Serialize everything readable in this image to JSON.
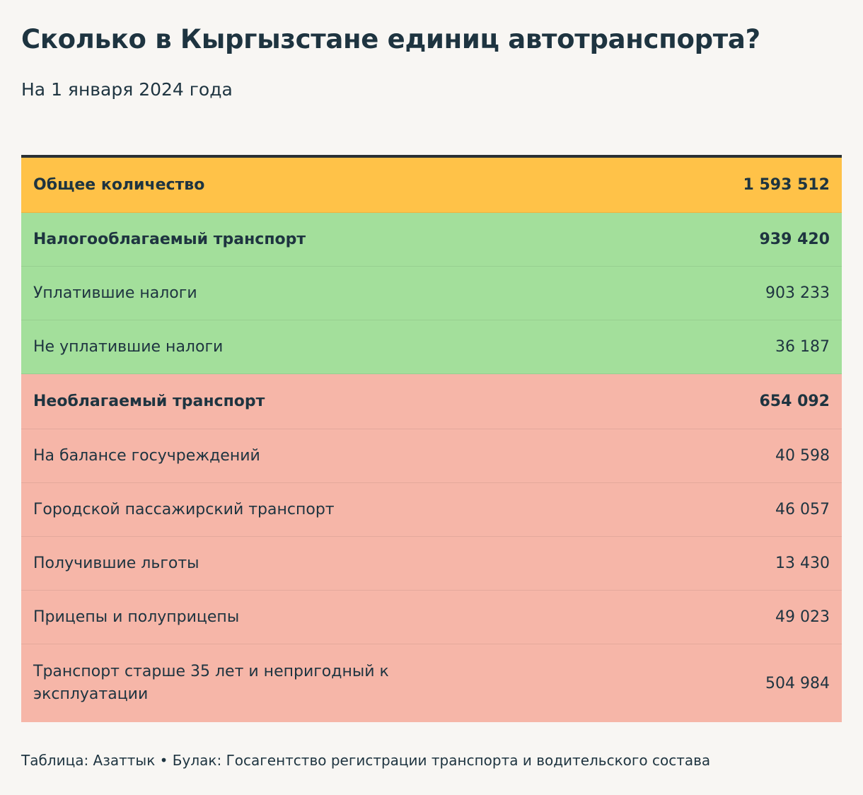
{
  "title": "Сколько в Кыргызстане единиц автотранспорта?",
  "subtitle": "На 1 января 2024 года",
  "rows": [
    {
      "label": "Общее количество",
      "value": "1 593 512"
    },
    {
      "label": "Налогооблагаемый транспорт",
      "value": "939 420"
    },
    {
      "label": "Уплатившие налоги",
      "value": "903 233"
    },
    {
      "label": "Не уплатившие налоги",
      "value": "36 187"
    },
    {
      "label": "Необлагаемый транспорт",
      "value": "654 092"
    },
    {
      "label": "На балансе госучреждений",
      "value": "40 598"
    },
    {
      "label": "Городской пассажирский транспорт",
      "value": "46 057"
    },
    {
      "label": "Получившие льготы",
      "value": "13 430"
    },
    {
      "label": "Прицепы и полуприцепы",
      "value": "49 023"
    },
    {
      "label": "Транспорт старше 35 лет и непригодный к эксплуатации",
      "value": "504 984"
    }
  ],
  "colors": {
    "total": "#ffc248",
    "taxable": "#a3df9b",
    "nontaxable": "#f6b6a8",
    "text": "#1e3440",
    "background": "#f8f6f3"
  },
  "source": "Таблица: Азаттык • Булак: Госагентство регистрации транспорта и водительского состава"
}
